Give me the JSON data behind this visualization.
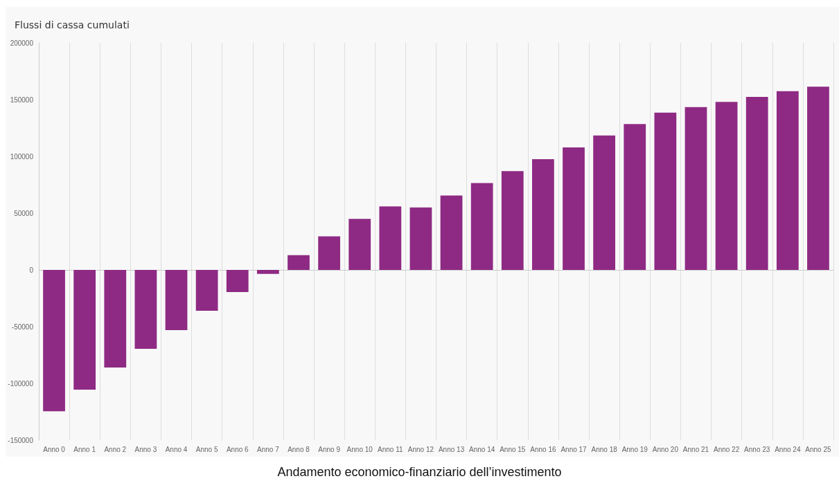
{
  "chart_data": {
    "type": "bar",
    "title": "Flussi di cassa cumulati",
    "categories": [
      "Anno 0",
      "Anno 1",
      "Anno 2",
      "Anno 3",
      "Anno 4",
      "Anno 5",
      "Anno 6",
      "Anno 7",
      "Anno 8",
      "Anno 9",
      "Anno 10",
      "Anno 11",
      "Anno 12",
      "Anno 13",
      "Anno 14",
      "Anno 15",
      "Anno 16",
      "Anno 17",
      "Anno 18",
      "Anno 19",
      "Anno 20",
      "Anno 21",
      "Anno 22",
      "Anno 23",
      "Anno 24",
      "Anno 25"
    ],
    "values": [
      -124500,
      -105500,
      -86000,
      -69500,
      -53000,
      -36000,
      -19500,
      -3500,
      13000,
      29500,
      45000,
      56000,
      55000,
      65500,
      76500,
      87000,
      97500,
      108000,
      118500,
      128500,
      138500,
      143500,
      148000,
      152500,
      157500,
      161500
    ],
    "color": "#8e2a84",
    "ylim": [
      -150000,
      200000
    ],
    "yticks": [
      -150000,
      -100000,
      -50000,
      0,
      50000,
      100000,
      150000,
      200000
    ],
    "grid": "x",
    "annotations": [
      "Andamento economico-finanziario dell’investimento"
    ]
  }
}
